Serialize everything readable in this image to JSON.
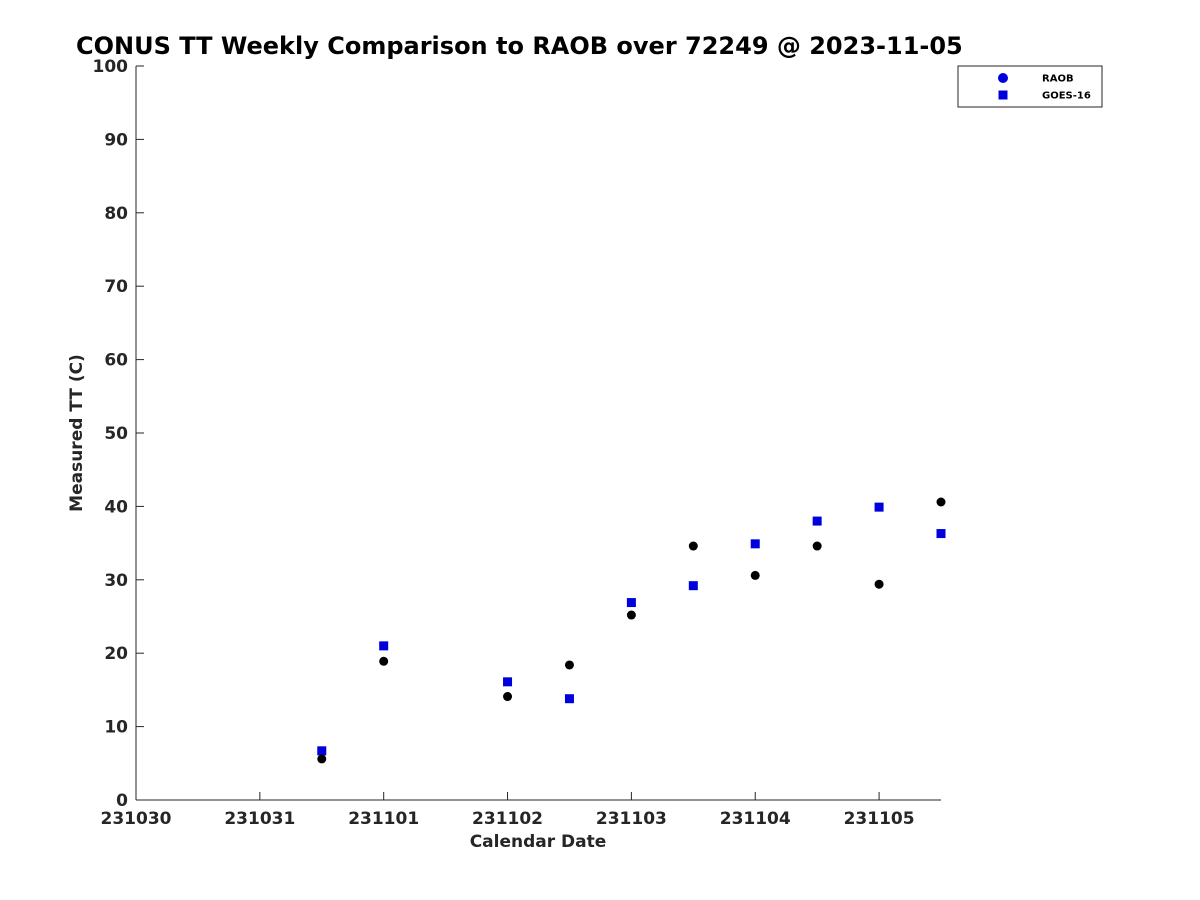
{
  "chart_data": {
    "type": "scatter",
    "title": "CONUS TT Weekly Comparison to RAOB over 72249 @ 2023-11-05",
    "xlabel": "Calendar Date",
    "ylabel": "Measured TT (C)",
    "xticks": [
      "231030",
      "231031",
      "231101",
      "231102",
      "231103",
      "231104",
      "231105"
    ],
    "xlim": [
      "2023-10-30",
      "2023-11-05 12:00"
    ],
    "ylim": [
      0,
      100
    ],
    "yticks": [
      0,
      10,
      20,
      30,
      40,
      50,
      60,
      70,
      80,
      90,
      100
    ],
    "grid": false,
    "legend_position": "top-right",
    "series": [
      {
        "name": "RAOB",
        "marker": "circle",
        "color": "#000000",
        "legend_color": "#0000dd",
        "points": [
          {
            "x": "2023-10-31 12:00",
            "y": 5.6
          },
          {
            "x": "2023-11-01 00:00",
            "y": 18.9
          },
          {
            "x": "2023-11-02 00:00",
            "y": 14.1
          },
          {
            "x": "2023-11-02 12:00",
            "y": 18.4
          },
          {
            "x": "2023-11-03 00:00",
            "y": 25.2
          },
          {
            "x": "2023-11-03 12:00",
            "y": 34.6
          },
          {
            "x": "2023-11-04 00:00",
            "y": 30.6
          },
          {
            "x": "2023-11-04 12:00",
            "y": 34.6
          },
          {
            "x": "2023-11-05 00:00",
            "y": 29.4
          },
          {
            "x": "2023-11-05 12:00",
            "y": 40.6
          }
        ]
      },
      {
        "name": "GOES-16",
        "marker": "square",
        "color": "#0000dd",
        "points": [
          {
            "x": "2023-10-31 12:00",
            "y": 6.7
          },
          {
            "x": "2023-11-01 00:00",
            "y": 21.0
          },
          {
            "x": "2023-11-02 00:00",
            "y": 16.1
          },
          {
            "x": "2023-11-02 12:00",
            "y": 13.8
          },
          {
            "x": "2023-11-03 00:00",
            "y": 26.9
          },
          {
            "x": "2023-11-03 12:00",
            "y": 29.2
          },
          {
            "x": "2023-11-04 00:00",
            "y": 34.9
          },
          {
            "x": "2023-11-04 12:00",
            "y": 38.0
          },
          {
            "x": "2023-11-05 00:00",
            "y": 39.9
          },
          {
            "x": "2023-11-05 12:00",
            "y": 36.3
          }
        ]
      }
    ]
  }
}
